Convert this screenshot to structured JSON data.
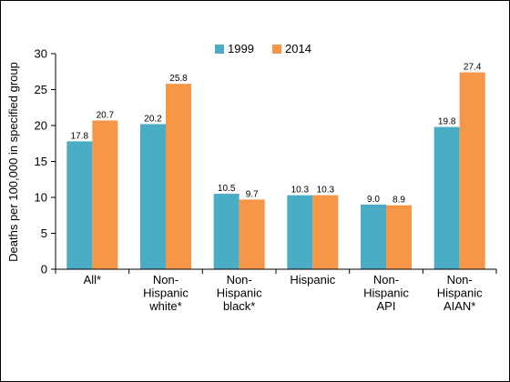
{
  "chart_data": {
    "type": "bar",
    "title": "",
    "ylabel": "Deaths per 100,000 in specified group",
    "xlabel": "",
    "ylim": [
      0,
      30
    ],
    "yticks": [
      "0",
      "5",
      "10",
      "15",
      "20",
      "25",
      "30"
    ],
    "grid": false,
    "legend_position": "top-center",
    "categories": [
      [
        "All*"
      ],
      [
        "Non-",
        "Hispanic",
        "white*"
      ],
      [
        "Non-",
        "Hispanic",
        "black*"
      ],
      [
        "Hispanic"
      ],
      [
        "Non-",
        "Hispanic",
        "API"
      ],
      [
        "Non-",
        "Hispanic",
        "AIAN*"
      ]
    ],
    "series": [
      {
        "name": "1999",
        "color": "#4bacc6",
        "values": [
          17.8,
          20.2,
          10.5,
          10.3,
          9.0,
          19.8
        ],
        "labels": [
          "17.8",
          "20.2",
          "10.5",
          "10.3",
          "9.0",
          "19.8"
        ]
      },
      {
        "name": "2014",
        "color": "#f79646",
        "values": [
          20.7,
          25.8,
          9.7,
          10.3,
          8.9,
          27.4
        ],
        "labels": [
          "20.7",
          "25.8",
          "9.7",
          "10.3",
          "8.9",
          "27.4"
        ]
      }
    ]
  }
}
